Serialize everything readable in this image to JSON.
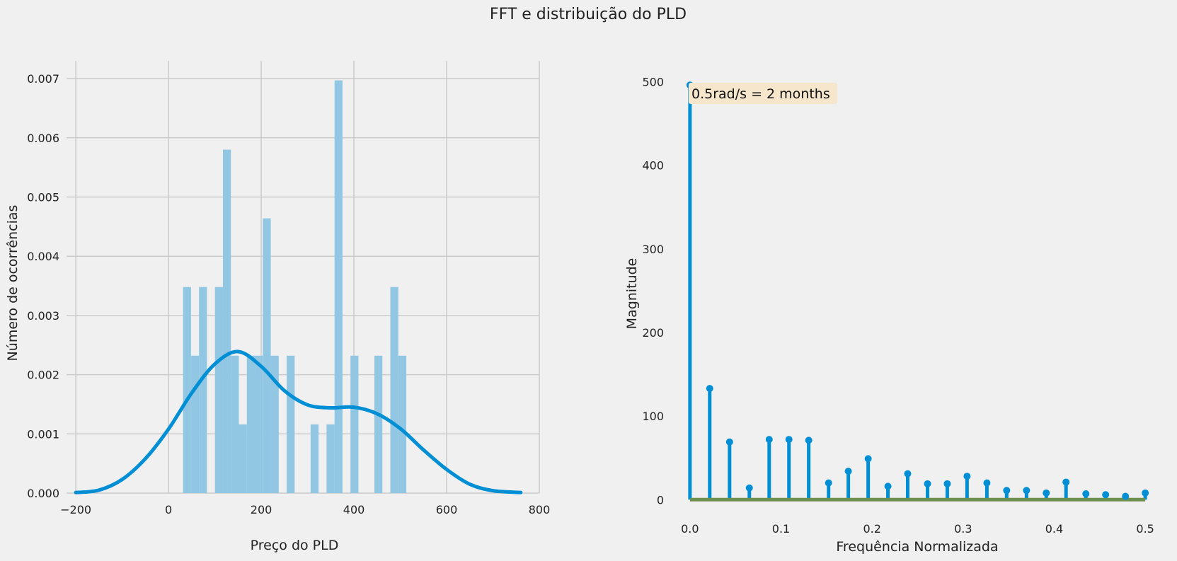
{
  "figure_title": "FFT e distribuição do PLD",
  "chart_data": [
    {
      "type": "bar",
      "subtype": "histogram-with-kde",
      "xlabel": "Preço do PLD",
      "ylabel": "Número de ocorrências",
      "xlim": [
        -220,
        800
      ],
      "ylim": [
        0,
        0.0073
      ],
      "xticks": [
        -200,
        0,
        200,
        400,
        600,
        800
      ],
      "xtick_labels": [
        "−200",
        "0",
        "200",
        "400",
        "600",
        "800"
      ],
      "yticks": [
        0,
        0.001,
        0.002,
        0.003,
        0.004,
        0.005,
        0.006,
        0.007
      ],
      "ytick_labels": [
        "0.000",
        "0.001",
        "0.002",
        "0.003",
        "0.004",
        "0.005",
        "0.006",
        "0.007"
      ],
      "grid": true,
      "bin_width": 17.2,
      "bin_starts": [
        31.4,
        48.6,
        65.8,
        83.0,
        100.2,
        117.4,
        134.6,
        151.8,
        169.0,
        186.2,
        203.4,
        220.6,
        237.8,
        255.0,
        272.2,
        289.4,
        306.6,
        323.8,
        341.0,
        358.2,
        375.4,
        392.6,
        409.8,
        427.0,
        444.2,
        461.4,
        478.6,
        495.8,
        513.0
      ],
      "values": [
        0.00348,
        0.00232,
        0.00348,
        0.0,
        0.00348,
        0.0058,
        0.00232,
        0.00116,
        0.00232,
        0.00232,
        0.00464,
        0.00232,
        0.0,
        0.00232,
        0.0,
        0.0,
        0.00116,
        0.0,
        0.00116,
        0.00697,
        0.0,
        0.00232,
        0.0,
        0.0,
        0.00232,
        0.0,
        0.00348,
        0.00232,
        0.0
      ],
      "kde_x": [
        -200,
        -150,
        -100,
        -50,
        0,
        50,
        100,
        150,
        200,
        250,
        300,
        350,
        400,
        450,
        500,
        550,
        600,
        650,
        700,
        760
      ],
      "kde_y": [
        1e-05,
        5e-05,
        0.00023,
        0.00058,
        0.00108,
        0.00169,
        0.00218,
        0.00239,
        0.00214,
        0.00173,
        0.00149,
        0.00144,
        0.00145,
        0.00134,
        0.00109,
        0.00073,
        0.0004,
        0.00015,
        4e-05,
        1e-05
      ],
      "bar_color": "#92c7e4",
      "line_color": "#008fd5"
    },
    {
      "type": "stem",
      "xlabel": "Frequência Normalizada",
      "ylabel": "Magnitude",
      "xlim": [
        -0.01,
        0.51
      ],
      "ylim": [
        -15,
        525
      ],
      "xticks": [
        0,
        0.1,
        0.2,
        0.3,
        0.4,
        0.5
      ],
      "xtick_labels": [
        "0.0",
        "0.1",
        "0.2",
        "0.3",
        "0.4",
        "0.5"
      ],
      "yticks": [
        0,
        100,
        200,
        300,
        400,
        500
      ],
      "ytick_labels": [
        "0",
        "100",
        "200",
        "300",
        "400",
        "500"
      ],
      "grid": false,
      "x": [
        0.0,
        0.0217,
        0.0435,
        0.0652,
        0.087,
        0.1087,
        0.1304,
        0.1522,
        0.1739,
        0.1957,
        0.2174,
        0.2391,
        0.2609,
        0.2826,
        0.3043,
        0.3261,
        0.3478,
        0.3696,
        0.3913,
        0.413,
        0.4348,
        0.4565,
        0.4783,
        0.5
      ],
      "y": [
        496,
        133,
        69,
        14,
        72,
        72,
        71,
        20,
        34,
        49,
        16,
        31,
        19,
        19,
        28,
        20,
        11,
        11,
        8,
        21,
        7,
        6,
        4,
        8
      ],
      "annotation": "0.5rad/s = 2 months",
      "annotation_bg": "#f5e6cc",
      "stem_color": "#008fd5",
      "baseline_color": "#6d904f"
    }
  ]
}
